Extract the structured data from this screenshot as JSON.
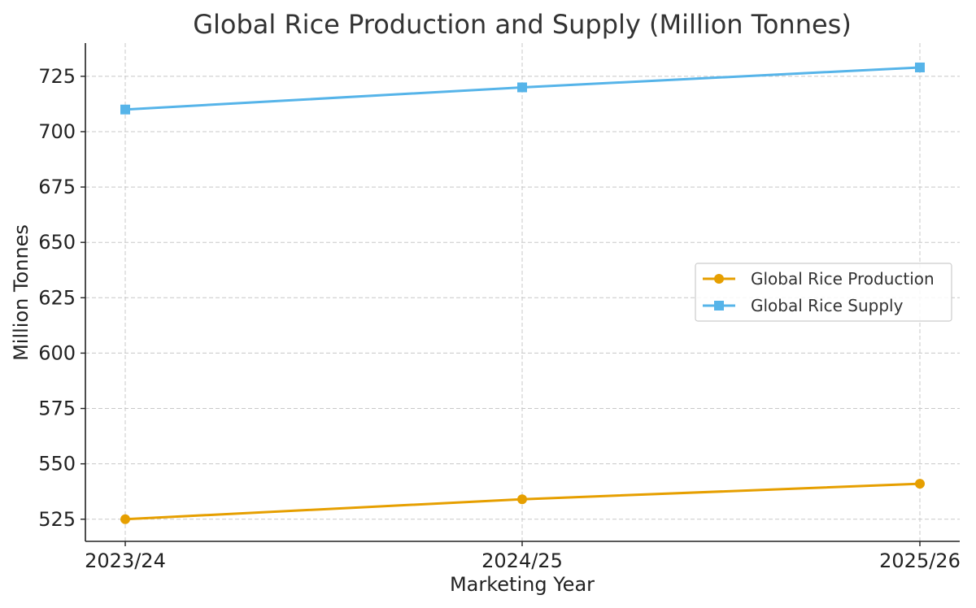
{
  "chart_data": {
    "type": "line",
    "title": "Global Rice Production and Supply (Million Tonnes)",
    "xlabel": "Marketing Year",
    "ylabel": "Million Tonnes",
    "categories": [
      "2023/24",
      "2024/25",
      "2025/26"
    ],
    "ylim": [
      515,
      740
    ],
    "yticks": [
      525,
      550,
      575,
      600,
      625,
      650,
      675,
      700,
      725
    ],
    "grid": true,
    "legend_position": "center-right",
    "series": [
      {
        "name": "Global Rice Production",
        "values": [
          525,
          534,
          541
        ],
        "color": "#E69F00",
        "marker": "circle"
      },
      {
        "name": "Global Rice Supply",
        "values": [
          710,
          720,
          729
        ],
        "color": "#56B4E9",
        "marker": "square"
      }
    ]
  }
}
